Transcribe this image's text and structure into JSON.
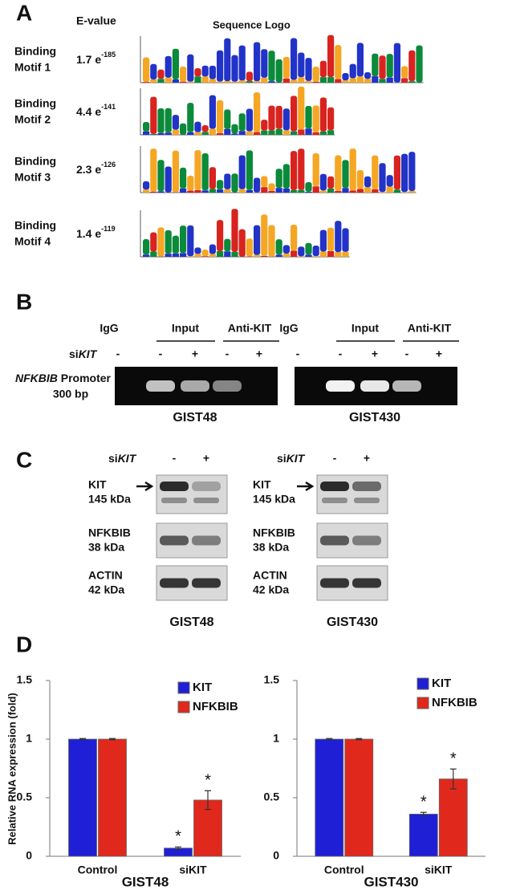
{
  "panels": {
    "A": {
      "label": "A",
      "headers": [
        "E-value",
        "Sequence Logo"
      ],
      "motifs": [
        {
          "name": [
            "Binding",
            "Motif 1"
          ],
          "evalue": {
            "base": "1.7 e",
            "exponent": "-185"
          }
        },
        {
          "name": [
            "Binding",
            "Motif 2"
          ],
          "evalue": {
            "base": "4.4 e",
            "exponent": "-141"
          }
        },
        {
          "name": [
            "Binding",
            "Motif 3"
          ],
          "evalue": {
            "base": "2.3 e",
            "exponent": "-126"
          }
        },
        {
          "name": [
            "Binding",
            "Motif 4"
          ],
          "evalue": {
            "base": "1.4 e",
            "exponent": "-119"
          }
        }
      ]
    },
    "B": {
      "label": "B",
      "columns": [
        "IgG",
        "Input",
        "Anti-KIT"
      ],
      "treatment": {
        "prefix": "si",
        "gene": "KIT"
      },
      "signs": [
        "-",
        "-",
        "+",
        "-",
        "+"
      ],
      "row_label": {
        "gene": "NFKBIB",
        "rest": " Promoter",
        "size": "300 bp"
      },
      "cells": [
        "GIST48",
        "GIST430"
      ]
    },
    "C": {
      "label": "C",
      "treatment": {
        "prefix": "si",
        "gene": "KIT"
      },
      "signs": [
        "-",
        "+"
      ],
      "rows": [
        [
          "KIT",
          "145 kDa"
        ],
        [
          "NFKBIB",
          "38 kDa"
        ],
        [
          "ACTIN",
          "42 kDa"
        ]
      ],
      "cells": [
        "GIST48",
        "GIST430"
      ]
    },
    "D": {
      "label": "D"
    }
  },
  "chart_data": [
    {
      "type": "bar",
      "title": "GIST48",
      "ylabel": "Relative RNA expression (fold)",
      "categories": [
        "Control",
        "siKIT"
      ],
      "ylim": [
        0,
        1.5
      ],
      "yticks": [
        0,
        0.5,
        1,
        1.5
      ],
      "series": [
        {
          "name": "KIT",
          "color": "#1f1fd6",
          "values": [
            1,
            0.07
          ],
          "errors": [
            0.005,
            0.01
          ],
          "annotations": [
            null,
            "*"
          ]
        },
        {
          "name": "NFKBIB",
          "color": "#e0281c",
          "values": [
            1,
            0.48
          ],
          "errors": [
            0.005,
            0.08
          ],
          "annotations": [
            null,
            "*"
          ]
        }
      ]
    },
    {
      "type": "bar",
      "title": "GIST430",
      "categories": [
        "Control",
        "siKIT"
      ],
      "ylim": [
        0,
        1.5
      ],
      "yticks": [
        0,
        0.5,
        1,
        1.5
      ],
      "series": [
        {
          "name": "KIT",
          "color": "#1f1fd6",
          "values": [
            1,
            0.36
          ],
          "errors": [
            0.005,
            0.015
          ],
          "annotations": [
            null,
            "*"
          ]
        },
        {
          "name": "NFKBIB",
          "color": "#e0281c",
          "values": [
            1,
            0.66
          ],
          "errors": [
            0.005,
            0.085
          ],
          "annotations": [
            null,
            "*"
          ]
        }
      ]
    }
  ]
}
